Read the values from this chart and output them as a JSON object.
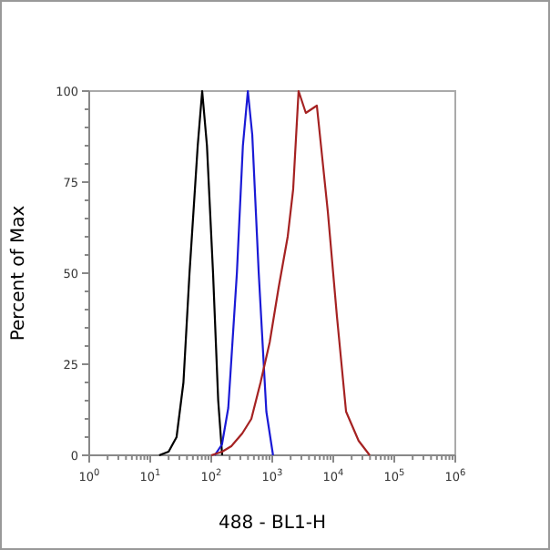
{
  "chart_data": {
    "type": "line",
    "xlabel": "488 - BL1-H",
    "ylabel": "Percent of Max",
    "log": "x",
    "grid": false,
    "marker": "none",
    "line_style": "solid",
    "xlim": [
      1,
      1000000
    ],
    "ylim": [
      0,
      100
    ],
    "xticks": [
      {
        "value": 1,
        "label": "10$^{0}$"
      },
      {
        "value": 2,
        "label": null
      },
      {
        "value": 3,
        "label": null
      },
      {
        "value": 4,
        "label": null
      },
      {
        "value": 5,
        "label": null
      },
      {
        "value": 6,
        "label": null
      },
      {
        "value": 7,
        "label": null
      },
      {
        "value": 8,
        "label": null
      },
      {
        "value": 9,
        "label": null
      },
      {
        "value": 10,
        "label": "10$^{1}$"
      },
      {
        "value": 20,
        "label": null
      },
      {
        "value": 30,
        "label": null
      },
      {
        "value": 40,
        "label": null
      },
      {
        "value": 50,
        "label": null
      },
      {
        "value": 60,
        "label": null
      },
      {
        "value": 70,
        "label": null
      },
      {
        "value": 80,
        "label": null
      },
      {
        "value": 90,
        "label": null
      },
      {
        "value": 100,
        "label": "10$^{2}$"
      },
      {
        "value": 200,
        "label": null
      },
      {
        "value": 300,
        "label": null
      },
      {
        "value": 400,
        "label": null
      },
      {
        "value": 500,
        "label": null
      },
      {
        "value": 600,
        "label": null
      },
      {
        "value": 700,
        "label": null
      },
      {
        "value": 800,
        "label": null
      },
      {
        "value": 900,
        "label": null
      },
      {
        "value": 1000,
        "label": "10$^{3}$"
      },
      {
        "value": 2000,
        "label": null
      },
      {
        "value": 3000,
        "label": null
      },
      {
        "value": 4000,
        "label": null
      },
      {
        "value": 5000,
        "label": null
      },
      {
        "value": 6000,
        "label": null
      },
      {
        "value": 7000,
        "label": null
      },
      {
        "value": 8000,
        "label": null
      },
      {
        "value": 9000,
        "label": null
      },
      {
        "value": 10000,
        "label": "10$^{4}$"
      },
      {
        "value": 20000,
        "label": null
      },
      {
        "value": 30000,
        "label": null
      },
      {
        "value": 40000,
        "label": null
      },
      {
        "value": 50000,
        "label": null
      },
      {
        "value": 60000,
        "label": null
      },
      {
        "value": 70000,
        "label": null
      },
      {
        "value": 80000,
        "label": null
      },
      {
        "value": 90000,
        "label": null
      },
      {
        "value": 100000,
        "label": "10$^{5}$"
      },
      {
        "value": 200000,
        "label": null
      },
      {
        "value": 300000,
        "label": null
      },
      {
        "value": 400000,
        "label": null
      },
      {
        "value": 500000,
        "label": null
      },
      {
        "value": 600000,
        "label": null
      },
      {
        "value": 700000,
        "label": null
      },
      {
        "value": 800000,
        "label": null
      },
      {
        "value": 900000,
        "label": null
      },
      {
        "value": 1000000,
        "label": "10$^{6}$"
      }
    ],
    "yticks": [
      0,
      {
        "value": 5,
        "label": null
      },
      {
        "value": 10,
        "label": null
      },
      {
        "value": 15,
        "label": null
      },
      {
        "value": 20,
        "label": null
      },
      25,
      {
        "value": 30,
        "label": null
      },
      {
        "value": 35,
        "label": null
      },
      {
        "value": 40,
        "label": null
      },
      {
        "value": 45,
        "label": null
      },
      50,
      {
        "value": 55,
        "label": null
      },
      {
        "value": 60,
        "label": null
      },
      {
        "value": 65,
        "label": null
      },
      {
        "value": 70,
        "label": null
      },
      75,
      {
        "value": 80,
        "label": null
      },
      {
        "value": 85,
        "label": null
      },
      {
        "value": 90,
        "label": null
      },
      {
        "value": 95,
        "label": null
      },
      100
    ],
    "series": [
      {
        "color": "#000000",
        "x": [
          14,
          20,
          27,
          35,
          44,
          60,
          71,
          85,
          107,
          130,
          151
        ],
        "values": [
          0,
          1,
          5,
          20,
          50,
          85,
          100,
          85,
          50,
          15,
          0
        ]
      },
      {
        "color": "#1a1ad6",
        "x": [
          114,
          150,
          190,
          263,
          330,
          398,
          470,
          600,
          800,
          1030
        ],
        "values": [
          0,
          3,
          13,
          50,
          85,
          100,
          88,
          50,
          12,
          0
        ]
      },
      {
        "color": "#a52222",
        "x": [
          100,
          151,
          213,
          322,
          454,
          643,
          907,
          1270,
          1790,
          2200,
          2700,
          3550,
          5380,
          8130,
          11500,
          16200,
          26000,
          39600
        ],
        "values": [
          0,
          1,
          2.5,
          6,
          10,
          20,
          31,
          46,
          60,
          73,
          100,
          94,
          96,
          67,
          38,
          12,
          4,
          0
        ]
      }
    ]
  }
}
